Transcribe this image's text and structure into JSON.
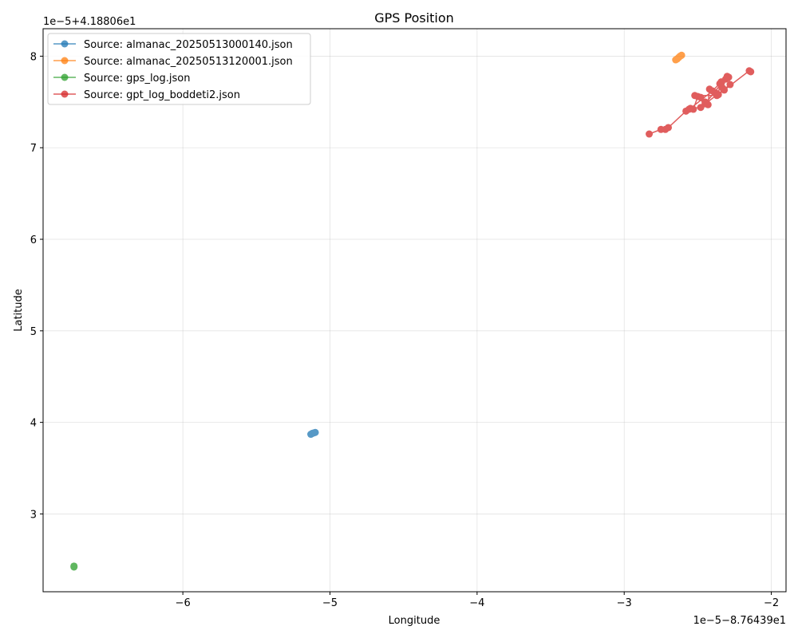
{
  "chart_data": {
    "type": "line",
    "title": "GPS Position",
    "xlabel": "Longitude",
    "ylabel": "Latitude",
    "x_offset_label": "1e−5−8.76439e1",
    "y_offset_label": "1e−5+4.18806e1",
    "xlim": [
      -6.95,
      -1.9
    ],
    "ylim": [
      2.15,
      8.3
    ],
    "x_ticks": [
      -6,
      -5,
      -4,
      -3,
      -2
    ],
    "x_tick_labels": [
      "−6",
      "−5",
      "−4",
      "−3",
      "−2"
    ],
    "y_ticks": [
      3,
      4,
      5,
      6,
      7,
      8
    ],
    "y_tick_labels": [
      "3",
      "4",
      "5",
      "6",
      "7",
      "8"
    ],
    "grid": true,
    "legend_position": "top-left",
    "series": [
      {
        "name": "Source: almanac_20250513000140.json",
        "color": "#1f77b4",
        "points": [
          [
            -5.13,
            3.87
          ],
          [
            -5.12,
            3.88
          ],
          [
            -5.11,
            3.885
          ],
          [
            -5.1,
            3.89
          ]
        ]
      },
      {
        "name": "Source: almanac_20250513120001.json",
        "color": "#ff7f0e",
        "points": [
          [
            -2.65,
            7.96
          ],
          [
            -2.64,
            7.97
          ],
          [
            -2.63,
            7.985
          ],
          [
            -2.62,
            8.0
          ],
          [
            -2.61,
            8.01
          ]
        ]
      },
      {
        "name": "Source: gps_log.json",
        "color": "#2ca02c",
        "points": [
          [
            -6.74,
            2.42
          ],
          [
            -6.74,
            2.43
          ]
        ]
      },
      {
        "name": "Source: gpt_log_boddeti2.json",
        "color": "#d62728",
        "points": [
          [
            -2.83,
            7.15
          ],
          [
            -2.75,
            7.2
          ],
          [
            -2.72,
            7.2
          ],
          [
            -2.7,
            7.22
          ],
          [
            -2.58,
            7.4
          ],
          [
            -2.56,
            7.42
          ],
          [
            -2.53,
            7.42
          ],
          [
            -2.5,
            7.56
          ],
          [
            -2.48,
            7.55
          ],
          [
            -2.45,
            7.5
          ],
          [
            -2.43,
            7.47
          ],
          [
            -2.42,
            7.64
          ],
          [
            -2.38,
            7.6
          ],
          [
            -2.36,
            7.58
          ],
          [
            -2.35,
            7.7
          ],
          [
            -2.33,
            7.65
          ],
          [
            -2.31,
            7.75
          ],
          [
            -2.29,
            7.77
          ],
          [
            -2.28,
            7.69
          ],
          [
            -2.48,
            7.44
          ],
          [
            -2.55,
            7.43
          ],
          [
            -2.4,
            7.62
          ],
          [
            -2.34,
            7.72
          ],
          [
            -2.3,
            7.78
          ],
          [
            -2.45,
            7.48
          ],
          [
            -2.52,
            7.57
          ],
          [
            -2.37,
            7.57
          ],
          [
            -2.32,
            7.63
          ],
          [
            -2.15,
            7.84
          ],
          [
            -2.14,
            7.83
          ]
        ]
      }
    ]
  }
}
